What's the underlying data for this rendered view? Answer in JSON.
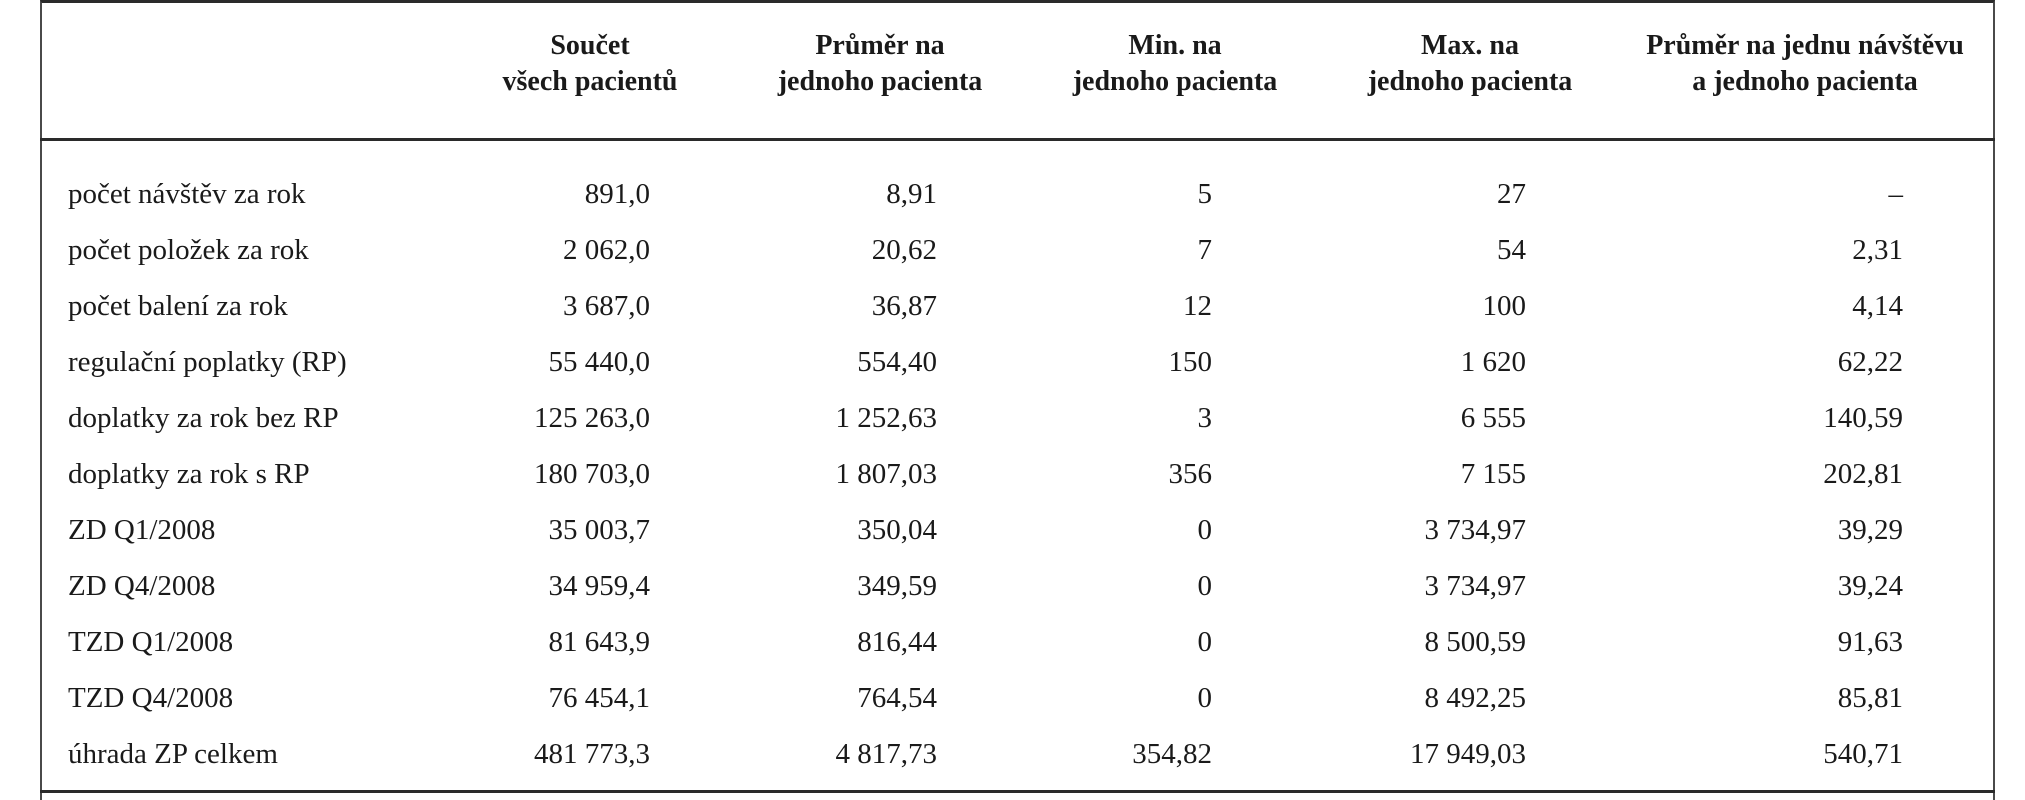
{
  "table": {
    "columns": [
      [
        "Součet",
        "všech pacientů"
      ],
      [
        "Průměr na",
        "jednoho pacienta"
      ],
      [
        "Min. na",
        "jednoho pacienta"
      ],
      [
        "Max. na",
        "jednoho pacienta"
      ],
      [
        "Průměr na jednu návštěvu",
        "a jednoho pacienta"
      ]
    ],
    "rows": [
      {
        "label": "počet návštěv za rok",
        "values": [
          "891,0",
          "8,91",
          "5",
          "27",
          "–"
        ]
      },
      {
        "label": "počet položek za rok",
        "values": [
          "2 062,0",
          "20,62",
          "7",
          "54",
          "2,31"
        ]
      },
      {
        "label": "počet balení za rok",
        "values": [
          "3 687,0",
          "36,87",
          "12",
          "100",
          "4,14"
        ]
      },
      {
        "label": "regulační poplatky (RP)",
        "values": [
          "55 440,0",
          "554,40",
          "150",
          "1 620",
          "62,22"
        ]
      },
      {
        "label": "doplatky za rok bez RP",
        "values": [
          "125 263,0",
          "1 252,63",
          "3",
          "6 555",
          "140,59"
        ]
      },
      {
        "label": "doplatky za rok s RP",
        "values": [
          "180 703,0",
          "1 807,03",
          "356",
          "7 155",
          "202,81"
        ]
      },
      {
        "label": "ZD Q1/2008",
        "values": [
          "35 003,7",
          "350,04",
          "0",
          "3 734,97",
          "39,29"
        ]
      },
      {
        "label": "ZD Q4/2008",
        "values": [
          "34 959,4",
          "349,59",
          "0",
          "3 734,97",
          "39,24"
        ]
      },
      {
        "label": "TZD Q1/2008",
        "values": [
          "81 643,9",
          "816,44",
          "0",
          "8 500,59",
          "91,63"
        ]
      },
      {
        "label": "TZD Q4/2008",
        "values": [
          "76 454,1",
          "764,54",
          "0",
          "8 492,25",
          "85,81"
        ]
      },
      {
        "label": "úhrada ZP celkem",
        "values": [
          "481 773,3",
          "4 817,73",
          "354,82",
          "17 949,03",
          "540,71"
        ]
      }
    ]
  }
}
